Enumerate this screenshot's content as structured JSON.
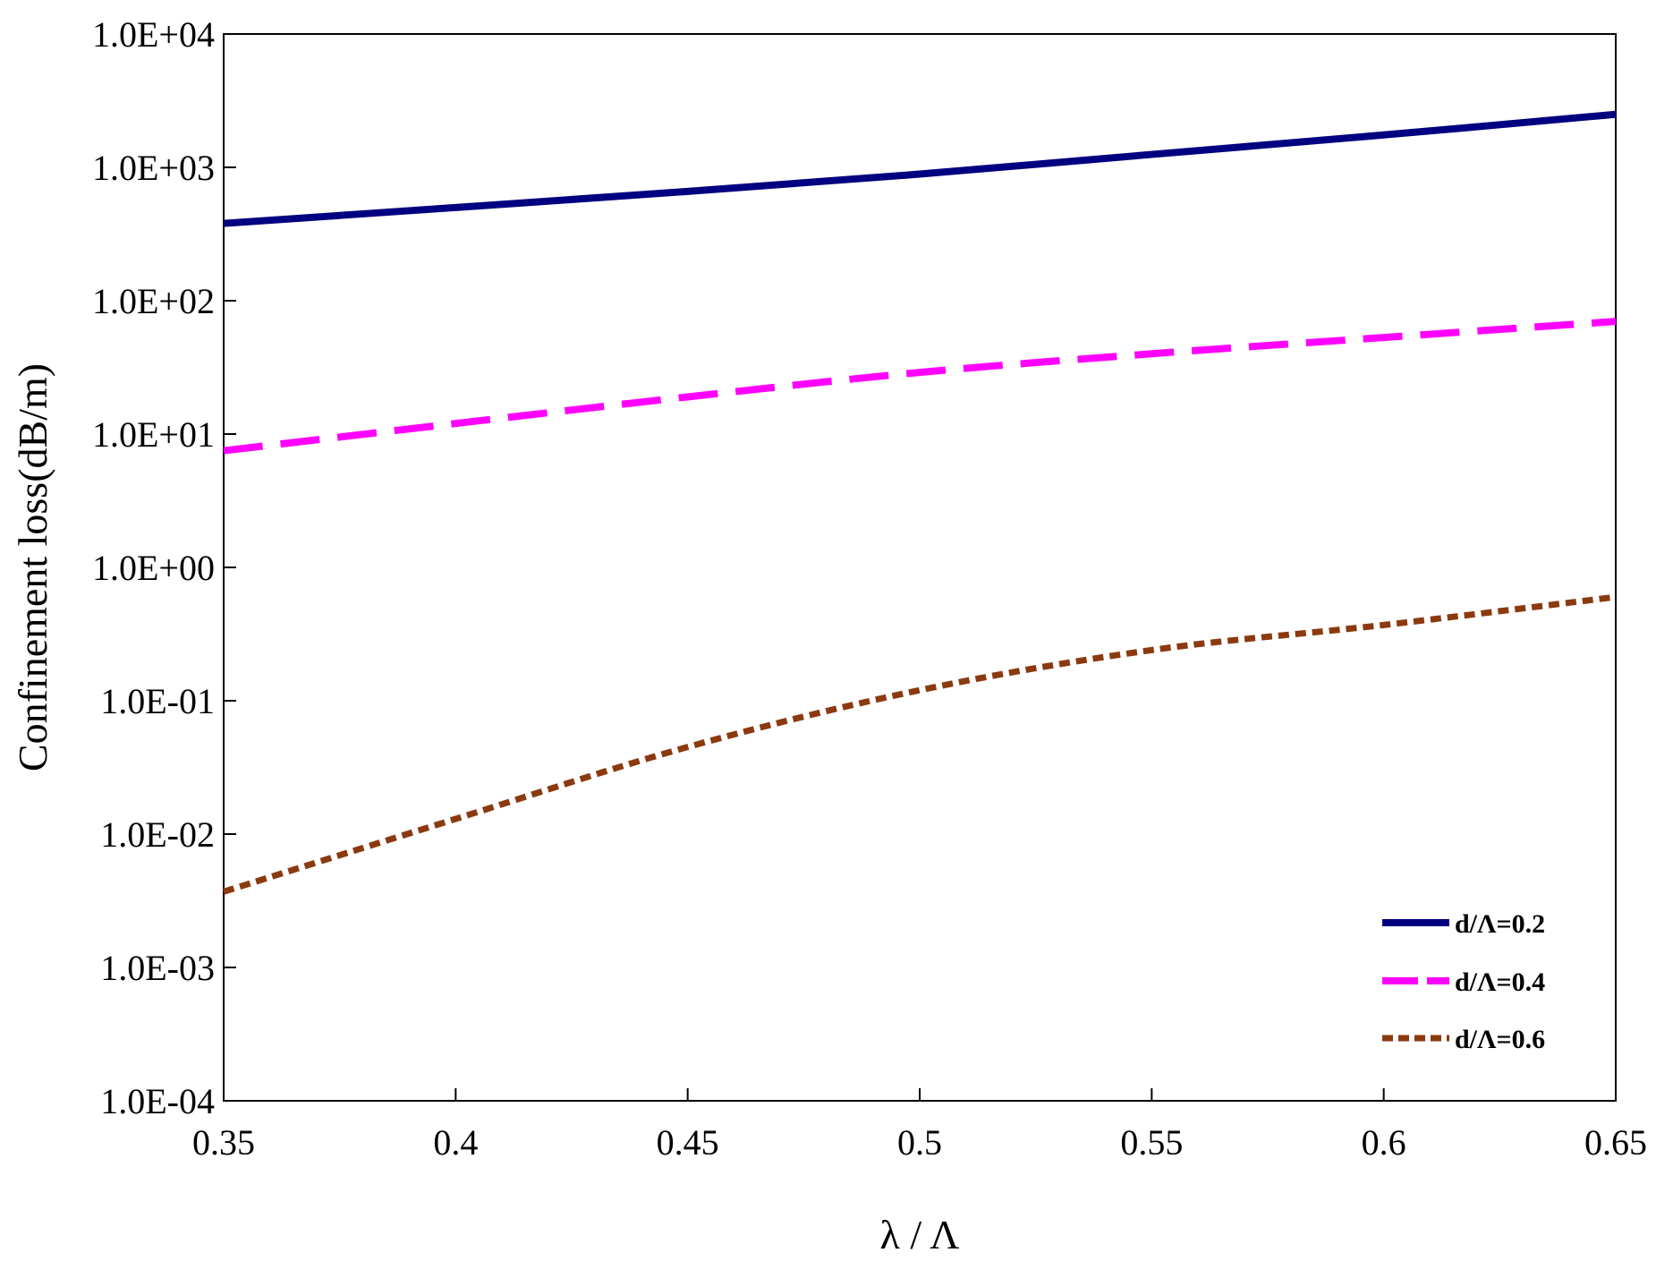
{
  "chart_data": {
    "type": "line",
    "title": "",
    "xlabel": "λ / Λ",
    "ylabel": "Confinement loss(dB/m)",
    "xlim": [
      0.35,
      0.65
    ],
    "ylim": [
      0.0001,
      10000
    ],
    "yscale": "log",
    "grid": false,
    "legend_position": "bottom-right",
    "x_ticks": [
      "0.35",
      "0.4",
      "0.45",
      "0.5",
      "0.55",
      "0.6",
      "0.65"
    ],
    "y_ticks": [
      "1.0E-04",
      "1.0E-03",
      "1.0E-02",
      "1.0E-01",
      "1.0E+00",
      "1.0E+01",
      "1.0E+02",
      "1.0E+03",
      "1.0E+04"
    ],
    "series": [
      {
        "name": "d/Λ=0.2",
        "color": "#000080",
        "style": "solid",
        "x": [
          0.35,
          0.4,
          0.45,
          0.5,
          0.55,
          0.6,
          0.65
        ],
        "y": [
          380,
          500,
          660,
          890,
          1250,
          1750,
          2500
        ]
      },
      {
        "name": "d/Λ=0.4",
        "color": "#ff00ff",
        "style": "dashed",
        "x": [
          0.35,
          0.4,
          0.45,
          0.5,
          0.55,
          0.6,
          0.65
        ],
        "y": [
          7.5,
          12,
          19,
          29,
          40,
          53,
          70
        ]
      },
      {
        "name": "d/Λ=0.6",
        "color": "#8b3a10",
        "style": "dotted",
        "x": [
          0.35,
          0.4,
          0.45,
          0.5,
          0.55,
          0.6,
          0.65
        ],
        "y": [
          0.0037,
          0.013,
          0.045,
          0.12,
          0.24,
          0.37,
          0.6
        ]
      }
    ]
  }
}
